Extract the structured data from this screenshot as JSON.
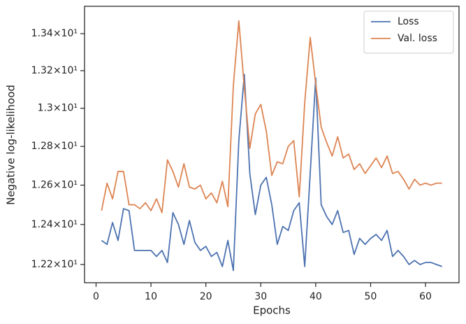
{
  "chart_data": {
    "type": "line",
    "x_label": "Epochs",
    "y_label": "Negative log-likelihood",
    "x": [
      1,
      2,
      3,
      4,
      5,
      6,
      7,
      8,
      9,
      10,
      11,
      12,
      13,
      14,
      15,
      16,
      17,
      18,
      19,
      20,
      21,
      22,
      23,
      24,
      25,
      26,
      27,
      28,
      29,
      30,
      31,
      32,
      33,
      34,
      35,
      36,
      37,
      38,
      39,
      40,
      41,
      42,
      43,
      44,
      45,
      46,
      47,
      48,
      49,
      50,
      51,
      52,
      53,
      54,
      55,
      56,
      57,
      58,
      59,
      60,
      61,
      62,
      63
    ],
    "series": [
      {
        "name": "Loss",
        "color": "#4c72b0",
        "values": [
          12.32,
          12.3,
          12.41,
          12.32,
          12.48,
          12.47,
          12.27,
          12.27,
          12.27,
          12.27,
          12.24,
          12.27,
          12.21,
          12.46,
          12.4,
          12.3,
          12.42,
          12.31,
          12.27,
          12.29,
          12.24,
          12.26,
          12.19,
          12.32,
          12.17,
          12.83,
          13.18,
          12.66,
          12.45,
          12.6,
          12.64,
          12.5,
          12.3,
          12.39,
          12.37,
          12.47,
          12.51,
          12.19,
          12.66,
          13.16,
          12.5,
          12.44,
          12.4,
          12.47,
          12.36,
          12.37,
          12.25,
          12.33,
          12.3,
          12.33,
          12.35,
          12.32,
          12.37,
          12.24,
          12.27,
          12.24,
          12.2,
          12.22,
          12.2,
          12.21,
          12.21,
          12.2,
          12.19
        ]
      },
      {
        "name": "Val. loss",
        "color": "#dd8452",
        "values": [
          12.47,
          12.61,
          12.53,
          12.67,
          12.67,
          12.5,
          12.5,
          12.48,
          12.51,
          12.47,
          12.53,
          12.46,
          12.73,
          12.67,
          12.59,
          12.71,
          12.59,
          12.58,
          12.6,
          12.53,
          12.56,
          12.51,
          12.62,
          12.49,
          13.12,
          13.47,
          13.11,
          12.79,
          12.97,
          13.02,
          12.88,
          12.65,
          12.72,
          12.71,
          12.8,
          12.83,
          12.54,
          13.03,
          13.38,
          13.13,
          12.9,
          12.82,
          12.75,
          12.85,
          12.74,
          12.76,
          12.68,
          12.71,
          12.66,
          12.7,
          12.74,
          12.69,
          12.75,
          12.66,
          12.67,
          12.63,
          12.58,
          12.63,
          12.6,
          12.61,
          12.6,
          12.61,
          12.61
        ]
      }
    ],
    "xlim": [
      -2.1,
      66.1
    ],
    "xticks": [
      0,
      10,
      20,
      30,
      40,
      50,
      60
    ],
    "ylim": [
      12.11,
      13.55
    ],
    "y_scale": "log",
    "yticks": [
      {
        "value": 12.2,
        "label": "1.22×10¹"
      },
      {
        "value": 12.4,
        "label": "1.24×10¹"
      },
      {
        "value": 12.6,
        "label": "1.26×10¹"
      },
      {
        "value": 12.8,
        "label": "1.28×10¹"
      },
      {
        "value": 13.0,
        "label": "1.3×10¹"
      },
      {
        "value": 13.2,
        "label": "1.32×10¹"
      },
      {
        "value": 13.4,
        "label": "1.34×10¹"
      }
    ],
    "grid": false,
    "legend_position": "upper-right"
  }
}
